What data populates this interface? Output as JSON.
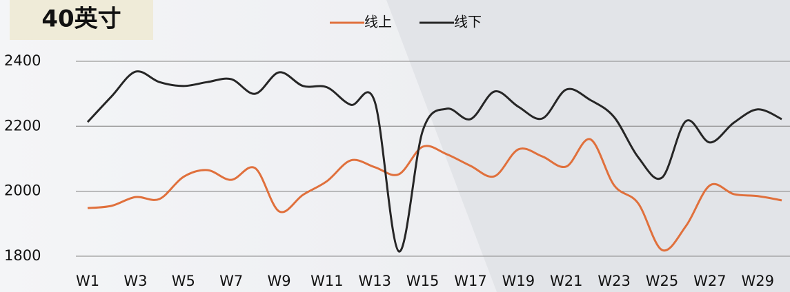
{
  "chart_data": {
    "type": "line",
    "title": "40英寸",
    "categories": [
      "W1",
      null,
      "W3",
      null,
      "W5",
      null,
      "W7",
      null,
      "W9",
      null,
      "W11",
      null,
      "W13",
      null,
      "W15",
      null,
      "W17",
      null,
      "W19",
      null,
      "W21",
      null,
      "W23",
      null,
      "W25",
      null,
      "W27",
      null,
      "W29",
      null
    ],
    "series": [
      {
        "name": "线上",
        "color": "#e0703c",
        "values": [
          1948,
          1955,
          1982,
          1976,
          2044,
          2065,
          2035,
          2071,
          1938,
          1989,
          2031,
          2095,
          2074,
          2052,
          2137,
          2114,
          2078,
          2046,
          2129,
          2107,
          2076,
          2160,
          2018,
          1963,
          1819,
          1893,
          2018,
          1991,
          1985,
          1972
        ]
      },
      {
        "name": "线下",
        "color": "#262626",
        "values": [
          2213,
          2292,
          2368,
          2336,
          2324,
          2336,
          2345,
          2300,
          2366,
          2324,
          2320,
          2266,
          2275,
          1815,
          2186,
          2254,
          2222,
          2307,
          2260,
          2224,
          2313,
          2281,
          2228,
          2105,
          2042,
          2216,
          2150,
          2211,
          2252,
          2222
        ]
      }
    ],
    "ylim": [
      1800,
      2400
    ],
    "yticks": [
      1800,
      2000,
      2200,
      2400
    ],
    "grid": true,
    "legend": "top"
  }
}
